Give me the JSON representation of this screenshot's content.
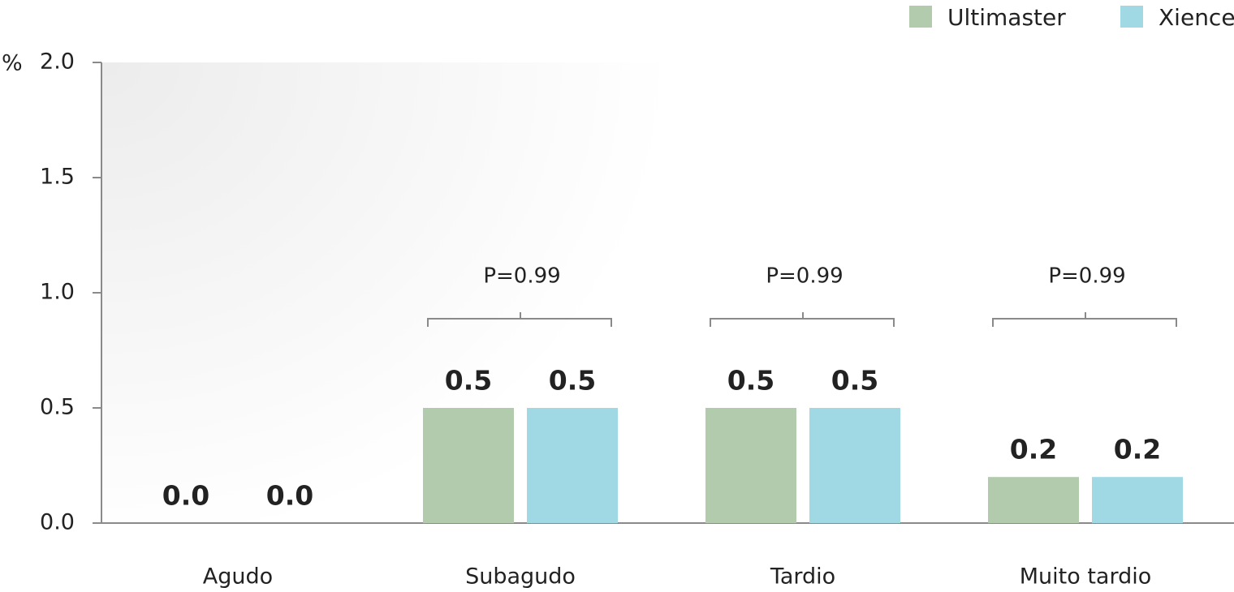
{
  "chart_data": {
    "type": "bar",
    "y_unit": "%",
    "categories": [
      "Agudo",
      "Subagudo",
      "Tardio",
      "Muito tardio"
    ],
    "series": [
      {
        "name": "Ultimaster",
        "color": "#b2cbad",
        "values": [
          0,
          0.5,
          0.5,
          0.2
        ],
        "value_labels": [
          "0.0",
          "0.5",
          "0.5",
          "0.2"
        ]
      },
      {
        "name": "Xience",
        "color": "#a0d9e4",
        "values": [
          0,
          0.5,
          0.5,
          0.2
        ],
        "value_labels": [
          "0.0",
          "0.5",
          "0.5",
          "0.2"
        ]
      }
    ],
    "annotations": [
      null,
      "P=0.99",
      "P=0.99",
      "P=0.99"
    ],
    "ylim": [
      0,
      2
    ],
    "yticks": [
      {
        "value": 0,
        "label": "0.0"
      },
      {
        "value": 0.5,
        "label": "0.5"
      },
      {
        "value": 1,
        "label": "1.0"
      },
      {
        "value": 1.5,
        "label": "1.5"
      },
      {
        "value": 2,
        "label": "2.0"
      }
    ],
    "legend": "top-right"
  }
}
